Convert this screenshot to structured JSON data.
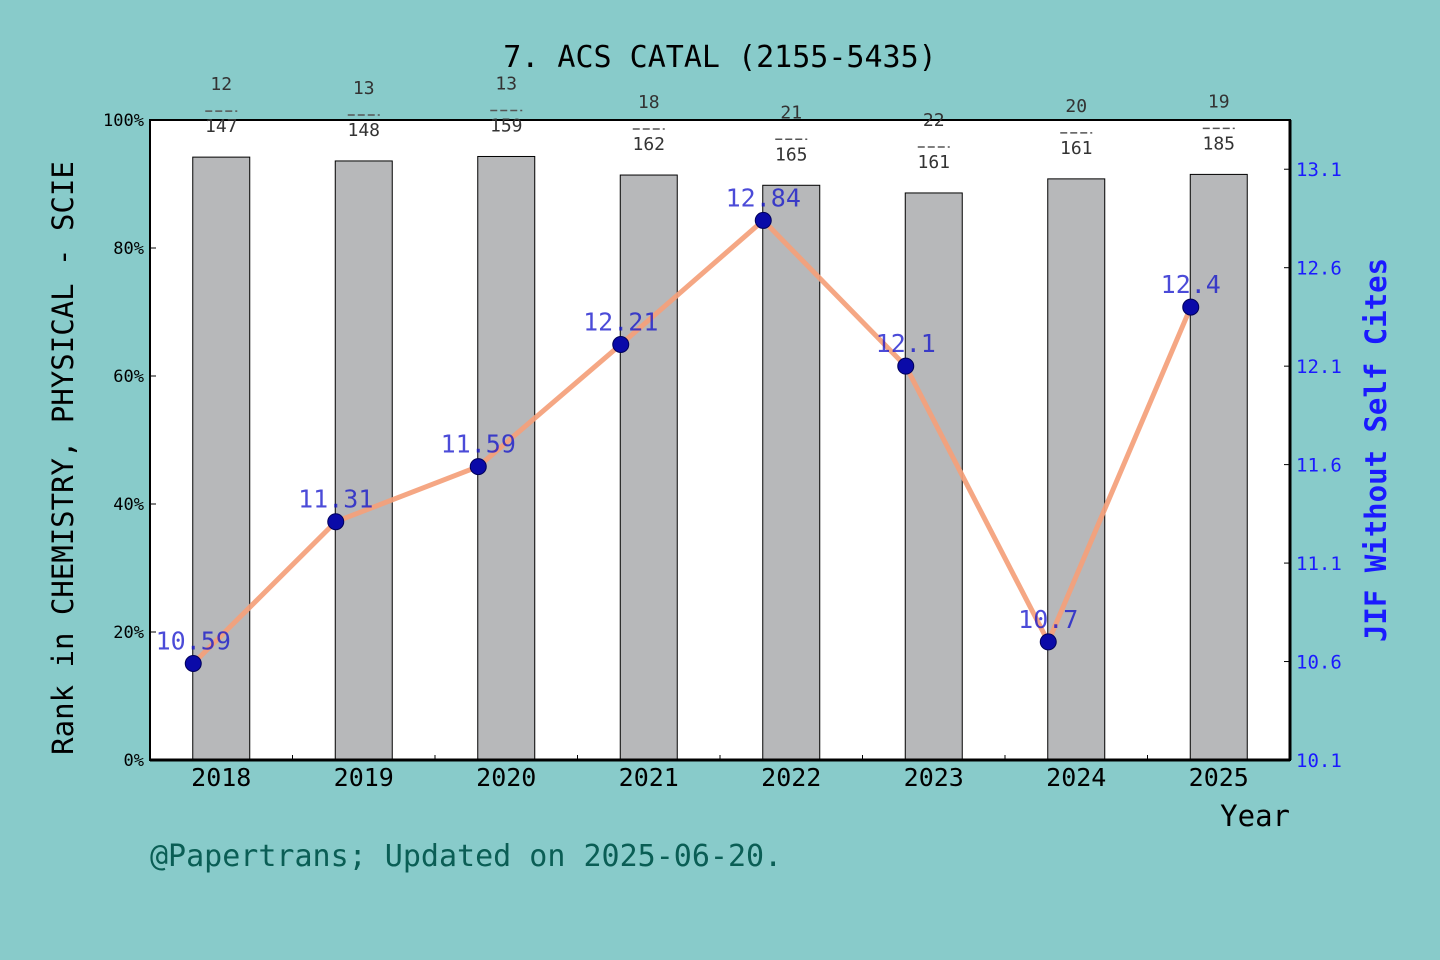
{
  "chart_data": {
    "type": "bar",
    "title": "7. ACS CATAL (2155-5435)",
    "xlabel": "Year",
    "ylabel": "Rank in CHEMISTRY, PHYSICAL - SCIE",
    "y2label": "JIF Without Self Cites",
    "categories": [
      "2018",
      "2019",
      "2020",
      "2021",
      "2022",
      "2023",
      "2024",
      "2025"
    ],
    "ylim": [
      0,
      100
    ],
    "yticks": [
      "0%",
      "20%",
      "40%",
      "60%",
      "80%",
      "100%"
    ],
    "y2lim": [
      10.1,
      13.35
    ],
    "y2ticks": [
      10.1,
      10.6,
      11.1,
      11.6,
      12.1,
      12.6,
      13.1
    ],
    "grid": false,
    "series": [
      {
        "type": "bar",
        "color": "#b7b8ba",
        "values": [
          94.2,
          93.6,
          94.3,
          91.4,
          89.8,
          88.6,
          90.8,
          91.5
        ],
        "rank_labels": [
          {
            "rank": "12",
            "total": "147"
          },
          {
            "rank": "13",
            "total": "148"
          },
          {
            "rank": "13",
            "total": "159"
          },
          {
            "rank": "18",
            "total": "162"
          },
          {
            "rank": "21",
            "total": "165"
          },
          {
            "rank": "22",
            "total": "161"
          },
          {
            "rank": "20",
            "total": "161"
          },
          {
            "rank": "19",
            "total": "185"
          }
        ]
      },
      {
        "type": "line",
        "axis": "right",
        "color": "#f4a07a",
        "marker_color": "#0a0aa8",
        "values": [
          10.59,
          11.31,
          11.59,
          12.21,
          12.84,
          12.1,
          10.7,
          12.4
        ],
        "value_labels": [
          "10.59",
          "11.31",
          "11.59",
          "12.21",
          "12.84",
          "12.1",
          "10.7",
          "12.4"
        ]
      }
    ]
  },
  "footer": {
    "credit": "@Papertrans; Updated on 2025-06-20."
  }
}
